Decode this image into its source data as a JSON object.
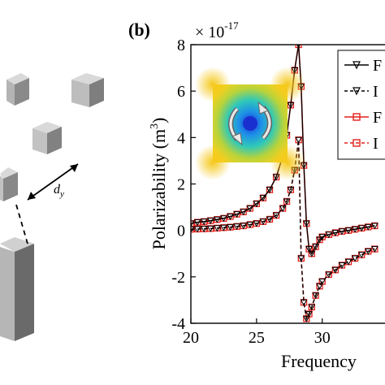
{
  "panel_label": "(b)",
  "colors": {
    "black_series": "#000000",
    "red_series": "#e3201b",
    "cube_light": "#c8c8c8",
    "cube_mid": "#9a9a9a",
    "cube_dark": "#6e6e6e"
  },
  "left_panel": {
    "spacing_label_main": "d",
    "spacing_label_sub": "y"
  },
  "inset": {
    "description_icon": "field-map-with-circulating-arrows-icon"
  },
  "chart_data": {
    "type": "line",
    "title": "",
    "xlabel": "Frequency",
    "ylabel": "Polarizability (m",
    "ylabel_superscript": "3",
    "ylabel_close": ")",
    "y_exponent_prefix": "× 10",
    "y_exponent_power": "-17",
    "xlim": [
      20,
      34
    ],
    "ylim": [
      -4,
      8
    ],
    "xticks": [
      "20",
      "25",
      "30"
    ],
    "yticks": [
      "-4",
      "-2",
      "0",
      "2",
      "4",
      "6",
      "8"
    ],
    "legend_position": "top-right",
    "legend": [
      {
        "text": "F",
        "style": "black-solid-triangle"
      },
      {
        "text": "I",
        "style": "black-dashed-triangle"
      },
      {
        "text": "F",
        "style": "red-solid-square"
      },
      {
        "text": "I",
        "style": "red-dashed-square"
      }
    ],
    "x": [
      20,
      20.5,
      21,
      21.5,
      22,
      22.5,
      23,
      23.5,
      24,
      24.5,
      25,
      25.5,
      26,
      26.5,
      27,
      27.3,
      27.6,
      27.9,
      28.2,
      28.4,
      28.6,
      28.8,
      29,
      29.2,
      29.5,
      29.8,
      30,
      30.5,
      31,
      31.5,
      32,
      32.5,
      33,
      33.5,
      34
    ],
    "series": [
      {
        "style": "black-solid",
        "values": [
          0.3,
          0.35,
          0.38,
          0.42,
          0.47,
          0.52,
          0.6,
          0.7,
          0.8,
          0.95,
          1.15,
          1.4,
          1.75,
          2.3,
          3.2,
          4.1,
          5.4,
          6.9,
          8.0,
          6.2,
          2.8,
          0.3,
          -0.8,
          -1.0,
          -0.7,
          -0.4,
          -0.28,
          -0.18,
          -0.1,
          -0.04,
          0.0,
          0.05,
          0.1,
          0.15,
          0.2
        ]
      },
      {
        "style": "black-dashed",
        "values": [
          0.05,
          0.06,
          0.07,
          0.08,
          0.1,
          0.12,
          0.14,
          0.17,
          0.2,
          0.25,
          0.3,
          0.38,
          0.48,
          0.65,
          0.95,
          1.25,
          1.75,
          2.6,
          3.9,
          -1.2,
          -3.1,
          -3.8,
          -3.6,
          -3.3,
          -2.8,
          -2.4,
          -2.2,
          -1.9,
          -1.7,
          -1.5,
          -1.35,
          -1.2,
          -1.05,
          -0.9,
          -0.8
        ]
      },
      {
        "style": "red-solid",
        "values": [
          0.3,
          0.35,
          0.38,
          0.42,
          0.47,
          0.52,
          0.6,
          0.7,
          0.8,
          0.95,
          1.15,
          1.4,
          1.75,
          2.3,
          3.2,
          4.1,
          5.4,
          6.9,
          8.0,
          6.2,
          2.8,
          0.3,
          -0.8,
          -1.0,
          -0.7,
          -0.4,
          -0.28,
          -0.18,
          -0.1,
          -0.04,
          0.0,
          0.05,
          0.1,
          0.15,
          0.2
        ]
      },
      {
        "style": "red-dashed",
        "values": [
          0.05,
          0.06,
          0.07,
          0.08,
          0.1,
          0.12,
          0.14,
          0.17,
          0.2,
          0.25,
          0.3,
          0.38,
          0.48,
          0.65,
          0.95,
          1.25,
          1.75,
          2.6,
          3.9,
          -1.2,
          -3.1,
          -3.8,
          -3.6,
          -3.3,
          -2.8,
          -2.4,
          -2.2,
          -1.9,
          -1.7,
          -1.5,
          -1.35,
          -1.2,
          -1.05,
          -0.9,
          -0.8
        ]
      }
    ]
  }
}
